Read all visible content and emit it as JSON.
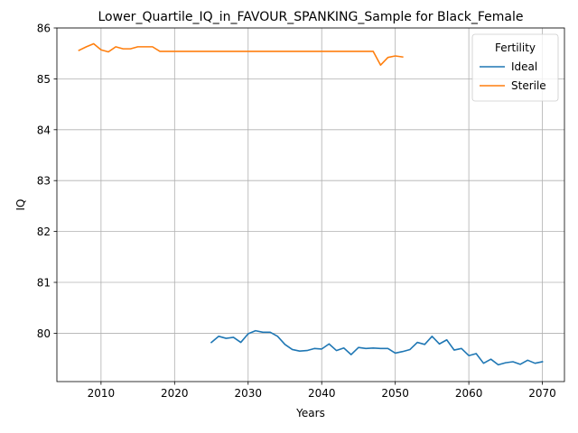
{
  "chart_data": {
    "type": "line",
    "title": "Lower_Quartile_IQ_in_FAVOUR_SPANKING_Sample for Black_Female",
    "xlabel": "Years",
    "ylabel": "IQ",
    "xlim": [
      2004,
      2073
    ],
    "ylim": [
      79.05,
      86.0
    ],
    "xticks": [
      2010,
      2020,
      2030,
      2040,
      2050,
      2060,
      2070
    ],
    "yticks": [
      80,
      81,
      82,
      83,
      84,
      85,
      86
    ],
    "grid": true,
    "legend": {
      "title": "Fertility",
      "placement": "top-right"
    },
    "series": [
      {
        "name": "Ideal",
        "color": "#1f77b4",
        "x": [
          2025,
          2026,
          2027,
          2028,
          2029,
          2030,
          2031,
          2032,
          2033,
          2034,
          2035,
          2036,
          2037,
          2038,
          2039,
          2040,
          2041,
          2042,
          2043,
          2044,
          2045,
          2046,
          2047,
          2048,
          2049,
          2050,
          2051,
          2052,
          2053,
          2054,
          2055,
          2056,
          2057,
          2058,
          2059,
          2060,
          2061,
          2062,
          2063,
          2064,
          2065,
          2066,
          2067,
          2068,
          2069,
          2070
        ],
        "y": [
          79.82,
          79.94,
          79.9,
          79.92,
          79.82,
          79.99,
          80.05,
          80.02,
          80.02,
          79.94,
          79.78,
          79.68,
          79.65,
          79.66,
          79.7,
          79.69,
          79.79,
          79.66,
          79.71,
          79.58,
          79.72,
          79.7,
          79.71,
          79.7,
          79.7,
          79.61,
          79.64,
          79.68,
          79.82,
          79.78,
          79.94,
          79.79,
          79.87,
          79.67,
          79.7,
          79.56,
          79.6,
          79.41,
          79.49,
          79.38,
          79.42,
          79.44,
          79.39,
          79.47,
          79.41,
          79.44
        ]
      },
      {
        "name": "Sterile",
        "color": "#ff7f0e",
        "x": [
          2007,
          2008,
          2009,
          2010,
          2011,
          2012,
          2013,
          2014,
          2015,
          2016,
          2017,
          2018,
          2019,
          2020,
          2021,
          2022,
          2023,
          2024,
          2025,
          2026,
          2027,
          2028,
          2029,
          2030,
          2031,
          2032,
          2033,
          2034,
          2035,
          2036,
          2037,
          2038,
          2039,
          2040,
          2041,
          2042,
          2043,
          2044,
          2045,
          2046,
          2047,
          2048,
          2049,
          2050,
          2051
        ],
        "y": [
          85.56,
          85.63,
          85.69,
          85.57,
          85.53,
          85.63,
          85.59,
          85.59,
          85.63,
          85.63,
          85.63,
          85.54,
          85.54,
          85.54,
          85.54,
          85.54,
          85.54,
          85.54,
          85.54,
          85.54,
          85.54,
          85.54,
          85.54,
          85.54,
          85.54,
          85.54,
          85.54,
          85.54,
          85.54,
          85.54,
          85.54,
          85.54,
          85.54,
          85.54,
          85.54,
          85.54,
          85.54,
          85.54,
          85.54,
          85.54,
          85.54,
          85.27,
          85.42,
          85.45,
          85.43
        ]
      }
    ]
  }
}
